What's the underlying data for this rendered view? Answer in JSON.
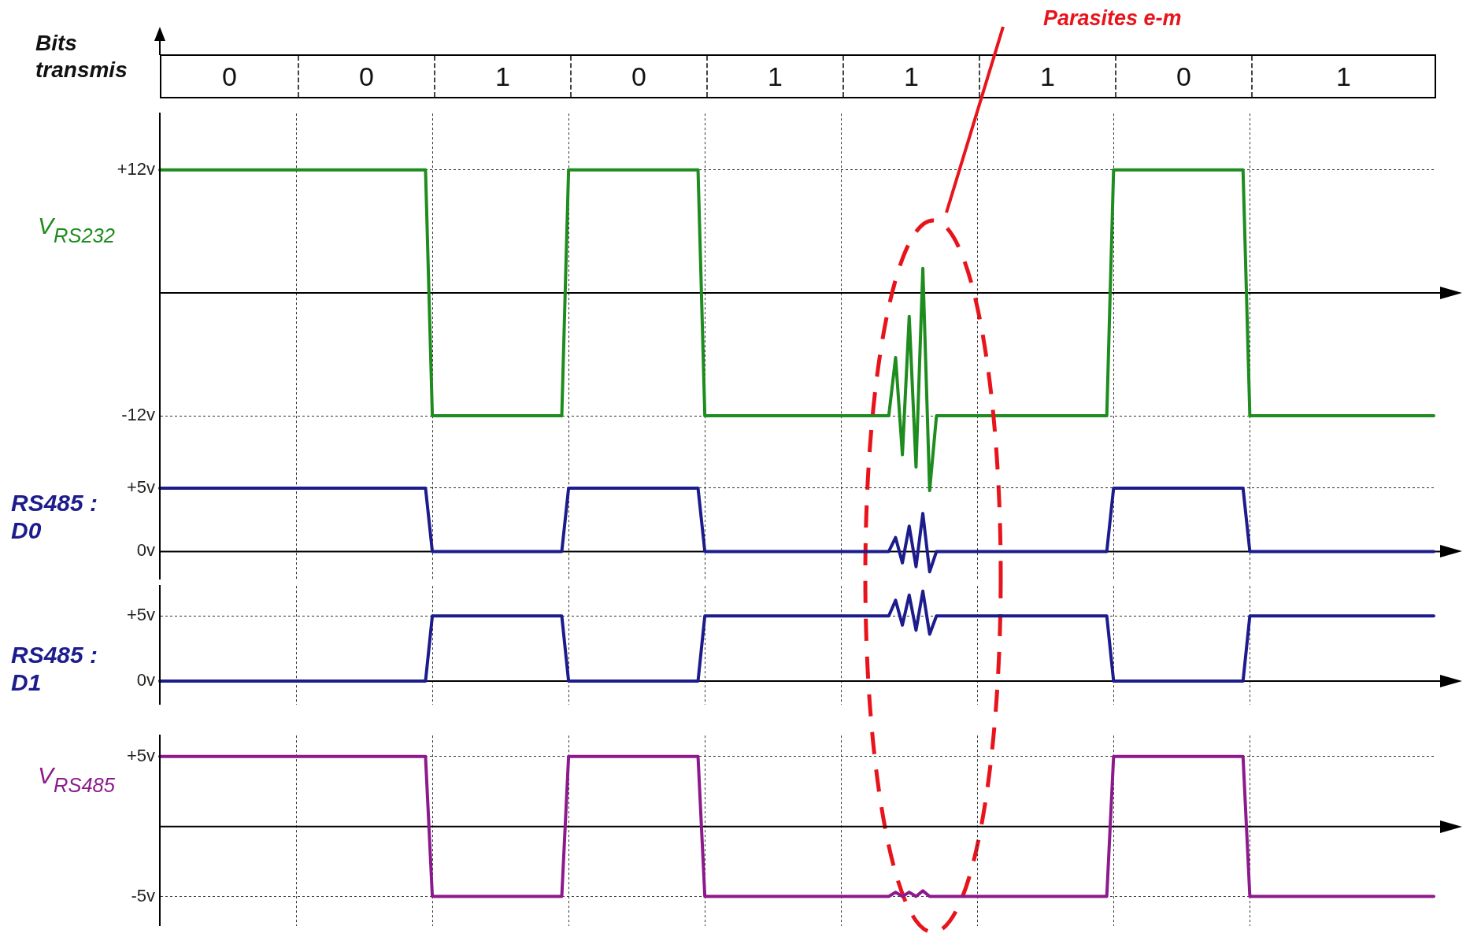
{
  "chart_data": [
    {
      "type": "other",
      "title": "Bits transmis",
      "categories": [
        "0",
        "0",
        "1",
        "0",
        "1",
        "1",
        "1",
        "0",
        "1"
      ]
    },
    {
      "type": "line",
      "ylabel": "V$_{RS232}$",
      "annotations": [
        "Parasites e-m"
      ],
      "categories": [
        null,
        null,
        null,
        null,
        null,
        null,
        null,
        null,
        null,
        null,
        null,
        null,
        null,
        null,
        null,
        null,
        null,
        null,
        null,
        null,
        null,
        null,
        null,
        null,
        null,
        null,
        null,
        null,
        null,
        null,
        null,
        null,
        null,
        null,
        null,
        null,
        null,
        null,
        null,
        null,
        null,
        null,
        null,
        null,
        null,
        null,
        null,
        null,
        null,
        null,
        null,
        null,
        null,
        null,
        null,
        null,
        null,
        null,
        null,
        null,
        null,
        null,
        null,
        null,
        null,
        null,
        null,
        null,
        null,
        null,
        null,
        null,
        null,
        null,
        null,
        null,
        null,
        null,
        null,
        null,
        null,
        null,
        null,
        null,
        null,
        null,
        null,
        null,
        null,
        null,
        null,
        null,
        null,
        null,
        null,
        null,
        null,
        null,
        null,
        null,
        null,
        null,
        null,
        null,
        null,
        null,
        null,
        null,
        null,
        null,
        null,
        null,
        null,
        null,
        null,
        null,
        null,
        null,
        null,
        null,
        null,
        null,
        null,
        null,
        null,
        null,
        null,
        null,
        null,
        null,
        null,
        null,
        null,
        null,
        null,
        null,
        null,
        null,
        null,
        null,
        null,
        null,
        null,
        null,
        null,
        null,
        null,
        null,
        null,
        null,
        null,
        null,
        null,
        null,
        null,
        null,
        null,
        null,
        null,
        null,
        null,
        null,
        null,
        null,
        null,
        null,
        null,
        null,
        null,
        null,
        null,
        null,
        null,
        null,
        null,
        null,
        null,
        null,
        null,
        null,
        null,
        null,
        null,
        null,
        null,
        null,
        null,
        null
      ],
      "series": [
        {
          "color": "#1e8c1e",
          "values": [
            12,
            12,
            12,
            12,
            12,
            12,
            12,
            12,
            12,
            12,
            12,
            12,
            12,
            12,
            12,
            12,
            12,
            12,
            12,
            12,
            12,
            12,
            12,
            12,
            12,
            12,
            12,
            12,
            12,
            12,
            12,
            12,
            12,
            12,
            12,
            12,
            12,
            12,
            12,
            12,
            -12,
            -12,
            -12,
            -12,
            -12,
            -12,
            -12,
            -12,
            -12,
            -12,
            -12,
            -12,
            -12,
            -12,
            -12,
            -12,
            -12,
            -12,
            -12,
            -12,
            12,
            12,
            12,
            12,
            12,
            12,
            12,
            12,
            12,
            12,
            12,
            12,
            12,
            12,
            12,
            12,
            12,
            12,
            12,
            12,
            -12,
            -12,
            -12,
            -12,
            -12,
            -12,
            -12,
            -12,
            -12,
            -12,
            -12,
            -12,
            -12,
            -12,
            -12,
            -12,
            -12,
            -12,
            -12,
            -12,
            -12,
            -12,
            -12,
            -12,
            -12,
            -12,
            -12,
            -12,
            -6.3,
            -15.8,
            -2.3,
            -17,
            2.4,
            -19.3,
            -12,
            -12,
            -12,
            -12,
            -12,
            -12,
            -12,
            -12,
            -12,
            -12,
            -12,
            -12,
            -12,
            -12,
            -12,
            -12,
            -12,
            -12,
            -12,
            -12,
            -12,
            -12,
            -12,
            -12,
            -12,
            -12,
            12,
            12,
            12,
            12,
            12,
            12,
            12,
            12,
            12,
            12,
            12,
            12,
            12,
            12,
            12,
            12,
            12,
            12,
            12,
            12,
            -12,
            -12,
            -12,
            -12,
            -12,
            -12,
            -12,
            -12,
            -12,
            -12,
            -12,
            -12,
            -12,
            -12,
            -12,
            -12,
            -12,
            -12,
            -12,
            -12,
            -12,
            -12,
            -12,
            -12,
            -12,
            -12,
            -12,
            -12
          ]
        }
      ],
      "ylim": [
        -20.2,
        17.5
      ],
      "yticks": [
        {
          "value": 12,
          "label": "+12v"
        },
        {
          "value": 0,
          "label": null
        },
        {
          "value": -12,
          "label": "-12v"
        }
      ],
      "ref_lines": [
        {
          "axis": "y",
          "value": 0
        }
      ],
      "grid": true,
      "tick_labels": "y",
      "marker": "none",
      "line_style": "solid"
    },
    {
      "type": "line",
      "ylabel": "RS485 : D0",
      "categories": [
        null,
        null,
        null,
        null,
        null,
        null,
        null,
        null,
        null,
        null,
        null,
        null,
        null,
        null,
        null,
        null,
        null,
        null,
        null,
        null,
        null,
        null,
        null,
        null,
        null,
        null,
        null,
        null,
        null,
        null,
        null,
        null,
        null,
        null,
        null,
        null,
        null,
        null,
        null,
        null,
        null,
        null,
        null,
        null,
        null,
        null,
        null,
        null,
        null,
        null,
        null,
        null,
        null,
        null,
        null,
        null,
        null,
        null,
        null,
        null,
        null,
        null,
        null,
        null,
        null,
        null,
        null,
        null,
        null,
        null,
        null,
        null,
        null,
        null,
        null,
        null,
        null,
        null,
        null,
        null,
        null,
        null,
        null,
        null,
        null,
        null,
        null,
        null,
        null,
        null,
        null,
        null,
        null,
        null,
        null,
        null,
        null,
        null,
        null,
        null,
        null,
        null,
        null,
        null,
        null,
        null,
        null,
        null,
        null,
        null,
        null,
        null,
        null,
        null,
        null,
        null,
        null,
        null,
        null,
        null,
        null,
        null,
        null,
        null,
        null,
        null,
        null,
        null,
        null,
        null,
        null,
        null,
        null,
        null,
        null,
        null,
        null,
        null,
        null,
        null,
        null,
        null,
        null,
        null,
        null,
        null,
        null,
        null,
        null,
        null,
        null,
        null,
        null,
        null,
        null,
        null,
        null,
        null,
        null,
        null,
        null,
        null,
        null,
        null,
        null,
        null,
        null,
        null,
        null,
        null,
        null,
        null,
        null,
        null,
        null,
        null,
        null,
        null,
        null,
        null,
        null,
        null,
        null,
        null,
        null,
        null,
        null,
        null
      ],
      "series": [
        {
          "color": "#1c1c8c",
          "values": [
            5,
            5,
            5,
            5,
            5,
            5,
            5,
            5,
            5,
            5,
            5,
            5,
            5,
            5,
            5,
            5,
            5,
            5,
            5,
            5,
            5,
            5,
            5,
            5,
            5,
            5,
            5,
            5,
            5,
            5,
            5,
            5,
            5,
            5,
            5,
            5,
            5,
            5,
            5,
            5,
            0,
            0,
            0,
            0,
            0,
            0,
            0,
            0,
            0,
            0,
            0,
            0,
            0,
            0,
            0,
            0,
            0,
            0,
            0,
            0,
            5,
            5,
            5,
            5,
            5,
            5,
            5,
            5,
            5,
            5,
            5,
            5,
            5,
            5,
            5,
            5,
            5,
            5,
            5,
            5,
            0,
            0,
            0,
            0,
            0,
            0,
            0,
            0,
            0,
            0,
            0,
            0,
            0,
            0,
            0,
            0,
            0,
            0,
            0,
            0,
            0,
            0,
            0,
            0,
            0,
            0,
            0,
            0,
            1.1,
            -0.9,
            2,
            -1.2,
            3,
            -1.6,
            0,
            0,
            0,
            0,
            0,
            0,
            0,
            0,
            0,
            0,
            0,
            0,
            0,
            0,
            0,
            0,
            0,
            0,
            0,
            0,
            0,
            0,
            0,
            0,
            0,
            0,
            5,
            5,
            5,
            5,
            5,
            5,
            5,
            5,
            5,
            5,
            5,
            5,
            5,
            5,
            5,
            5,
            5,
            5,
            5,
            5,
            0,
            0,
            0,
            0,
            0,
            0,
            0,
            0,
            0,
            0,
            0,
            0,
            0,
            0,
            0,
            0,
            0,
            0,
            0,
            0,
            0,
            0,
            0,
            0,
            0,
            0,
            0,
            0
          ]
        }
      ],
      "ylim": [
        -2.2,
        6.6
      ],
      "yticks": [
        {
          "value": 5,
          "label": "+5v"
        },
        {
          "value": 0,
          "label": "0v"
        }
      ],
      "ref_lines": [
        {
          "axis": "y",
          "value": 0
        }
      ],
      "grid": true,
      "tick_labels": "y",
      "marker": "none",
      "line_style": "solid"
    },
    {
      "type": "line",
      "ylabel": "RS485 : D1",
      "categories": [
        null,
        null,
        null,
        null,
        null,
        null,
        null,
        null,
        null,
        null,
        null,
        null,
        null,
        null,
        null,
        null,
        null,
        null,
        null,
        null,
        null,
        null,
        null,
        null,
        null,
        null,
        null,
        null,
        null,
        null,
        null,
        null,
        null,
        null,
        null,
        null,
        null,
        null,
        null,
        null,
        null,
        null,
        null,
        null,
        null,
        null,
        null,
        null,
        null,
        null,
        null,
        null,
        null,
        null,
        null,
        null,
        null,
        null,
        null,
        null,
        null,
        null,
        null,
        null,
        null,
        null,
        null,
        null,
        null,
        null,
        null,
        null,
        null,
        null,
        null,
        null,
        null,
        null,
        null,
        null,
        null,
        null,
        null,
        null,
        null,
        null,
        null,
        null,
        null,
        null,
        null,
        null,
        null,
        null,
        null,
        null,
        null,
        null,
        null,
        null,
        null,
        null,
        null,
        null,
        null,
        null,
        null,
        null,
        null,
        null,
        null,
        null,
        null,
        null,
        null,
        null,
        null,
        null,
        null,
        null,
        null,
        null,
        null,
        null,
        null,
        null,
        null,
        null,
        null,
        null,
        null,
        null,
        null,
        null,
        null,
        null,
        null,
        null,
        null,
        null,
        null,
        null,
        null,
        null,
        null,
        null,
        null,
        null,
        null,
        null,
        null,
        null,
        null,
        null,
        null,
        null,
        null,
        null,
        null,
        null,
        null,
        null,
        null,
        null,
        null,
        null,
        null,
        null,
        null,
        null,
        null,
        null,
        null,
        null,
        null,
        null,
        null,
        null,
        null,
        null,
        null,
        null,
        null,
        null,
        null,
        null,
        null,
        null
      ],
      "series": [
        {
          "color": "#1c1c8c",
          "values": [
            0,
            0,
            0,
            0,
            0,
            0,
            0,
            0,
            0,
            0,
            0,
            0,
            0,
            0,
            0,
            0,
            0,
            0,
            0,
            0,
            0,
            0,
            0,
            0,
            0,
            0,
            0,
            0,
            0,
            0,
            0,
            0,
            0,
            0,
            0,
            0,
            0,
            0,
            0,
            0,
            5,
            5,
            5,
            5,
            5,
            5,
            5,
            5,
            5,
            5,
            5,
            5,
            5,
            5,
            5,
            5,
            5,
            5,
            5,
            5,
            0,
            0,
            0,
            0,
            0,
            0,
            0,
            0,
            0,
            0,
            0,
            0,
            0,
            0,
            0,
            0,
            0,
            0,
            0,
            0,
            5,
            5,
            5,
            5,
            5,
            5,
            5,
            5,
            5,
            5,
            5,
            5,
            5,
            5,
            5,
            5,
            5,
            5,
            5,
            5,
            5,
            5,
            5,
            5,
            5,
            5,
            5,
            5,
            6.2,
            4.3,
            6.6,
            3.9,
            6.9,
            3.6,
            5,
            5,
            5,
            5,
            5,
            5,
            5,
            5,
            5,
            5,
            5,
            5,
            5,
            5,
            5,
            5,
            5,
            5,
            5,
            5,
            5,
            5,
            5,
            5,
            5,
            5,
            0,
            0,
            0,
            0,
            0,
            0,
            0,
            0,
            0,
            0,
            0,
            0,
            0,
            0,
            0,
            0,
            0,
            0,
            0,
            0,
            5,
            5,
            5,
            5,
            5,
            5,
            5,
            5,
            5,
            5,
            5,
            5,
            5,
            5,
            5,
            5,
            5,
            5,
            5,
            5,
            5,
            5,
            5,
            5,
            5,
            5,
            5,
            5
          ]
        }
      ],
      "ylim": [
        -1.8,
        7.3
      ],
      "yticks": [
        {
          "value": 5,
          "label": "+5v"
        },
        {
          "value": 0,
          "label": "0v"
        }
      ],
      "ref_lines": [
        {
          "axis": "y",
          "value": 0
        }
      ],
      "grid": true,
      "tick_labels": "y",
      "marker": "none",
      "line_style": "solid"
    },
    {
      "type": "line",
      "ylabel": "V$_{RS485}$",
      "categories": [
        null,
        null,
        null,
        null,
        null,
        null,
        null,
        null,
        null,
        null,
        null,
        null,
        null,
        null,
        null,
        null,
        null,
        null,
        null,
        null,
        null,
        null,
        null,
        null,
        null,
        null,
        null,
        null,
        null,
        null,
        null,
        null,
        null,
        null,
        null,
        null,
        null,
        null,
        null,
        null,
        null,
        null,
        null,
        null,
        null,
        null,
        null,
        null,
        null,
        null,
        null,
        null,
        null,
        null,
        null,
        null,
        null,
        null,
        null,
        null,
        null,
        null,
        null,
        null,
        null,
        null,
        null,
        null,
        null,
        null,
        null,
        null,
        null,
        null,
        null,
        null,
        null,
        null,
        null,
        null,
        null,
        null,
        null,
        null,
        null,
        null,
        null,
        null,
        null,
        null,
        null,
        null,
        null,
        null,
        null,
        null,
        null,
        null,
        null,
        null,
        null,
        null,
        null,
        null,
        null,
        null,
        null,
        null,
        null,
        null,
        null,
        null,
        null,
        null,
        null,
        null,
        null,
        null,
        null,
        null,
        null,
        null,
        null,
        null,
        null,
        null,
        null,
        null,
        null,
        null,
        null,
        null,
        null,
        null,
        null,
        null,
        null,
        null,
        null,
        null,
        null,
        null,
        null,
        null,
        null,
        null,
        null,
        null,
        null,
        null,
        null,
        null,
        null,
        null,
        null,
        null,
        null,
        null,
        null,
        null,
        null,
        null,
        null,
        null,
        null,
        null,
        null,
        null,
        null,
        null,
        null,
        null,
        null,
        null,
        null,
        null,
        null,
        null,
        null,
        null,
        null,
        null,
        null,
        null,
        null,
        null,
        null,
        null
      ],
      "series": [
        {
          "color": "#8c1a8c",
          "values": [
            5,
            5,
            5,
            5,
            5,
            5,
            5,
            5,
            5,
            5,
            5,
            5,
            5,
            5,
            5,
            5,
            5,
            5,
            5,
            5,
            5,
            5,
            5,
            5,
            5,
            5,
            5,
            5,
            5,
            5,
            5,
            5,
            5,
            5,
            5,
            5,
            5,
            5,
            5,
            5,
            -5,
            -5,
            -5,
            -5,
            -5,
            -5,
            -5,
            -5,
            -5,
            -5,
            -5,
            -5,
            -5,
            -5,
            -5,
            -5,
            -5,
            -5,
            -5,
            -5,
            5,
            5,
            5,
            5,
            5,
            5,
            5,
            5,
            5,
            5,
            5,
            5,
            5,
            5,
            5,
            5,
            5,
            5,
            5,
            5,
            -5,
            -5,
            -5,
            -5,
            -5,
            -5,
            -5,
            -5,
            -5,
            -5,
            -5,
            -5,
            -5,
            -5,
            -5,
            -5,
            -5,
            -5,
            -5,
            -5,
            -5,
            -5,
            -5,
            -5,
            -5,
            -5,
            -5,
            -5,
            -4.7,
            -5,
            -4.7,
            -5,
            -4.6,
            -5,
            -5,
            -5,
            -5,
            -5,
            -5,
            -5,
            -5,
            -5,
            -5,
            -5,
            -5,
            -5,
            -5,
            -5,
            -5,
            -5,
            -5,
            -5,
            -5,
            -5,
            -5,
            -5,
            -5,
            -5,
            -5,
            -5,
            5,
            5,
            5,
            5,
            5,
            5,
            5,
            5,
            5,
            5,
            5,
            5,
            5,
            5,
            5,
            5,
            5,
            5,
            5,
            5,
            -5,
            -5,
            -5,
            -5,
            -5,
            -5,
            -5,
            -5,
            -5,
            -5,
            -5,
            -5,
            -5,
            -5,
            -5,
            -5,
            -5,
            -5,
            -5,
            -5,
            -5,
            -5,
            -5,
            -5,
            -5,
            -5,
            -5,
            -5
          ]
        }
      ],
      "ylim": [
        -7.1,
        6.5
      ],
      "yticks": [
        {
          "value": 5,
          "label": "+5v"
        },
        {
          "value": 0,
          "label": null
        },
        {
          "value": -5,
          "label": "-5v"
        }
      ],
      "ref_lines": [
        {
          "axis": "y",
          "value": 0
        }
      ],
      "grid": true,
      "tick_labels": "y",
      "marker": "none",
      "line_style": "solid"
    }
  ]
}
